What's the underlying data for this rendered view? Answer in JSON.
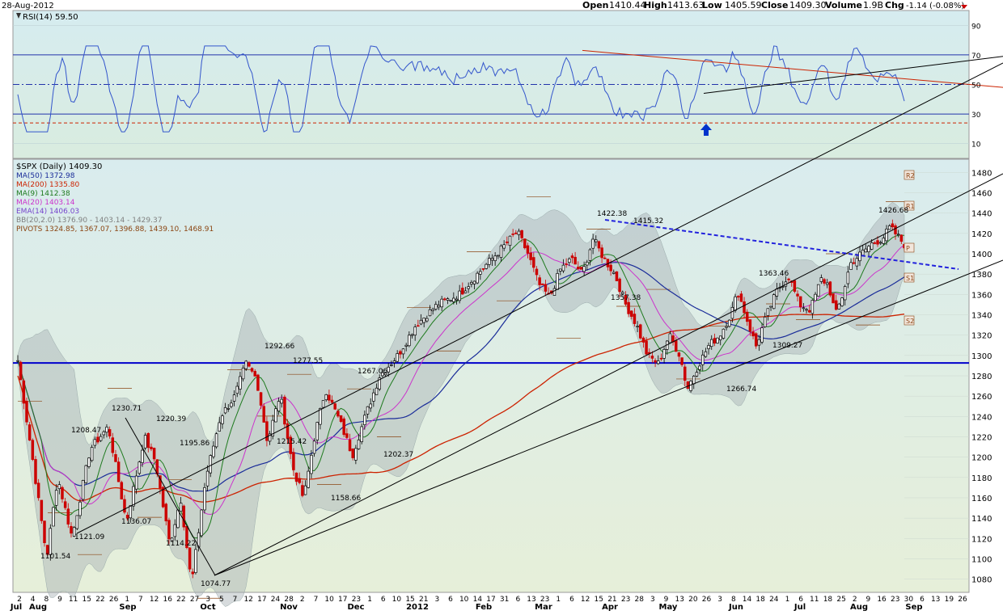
{
  "header": {
    "date": "28-Aug-2012",
    "open_label": "Open",
    "open": "1410.44",
    "high_label": "High",
    "high": "1413.63",
    "low_label": "Low",
    "low": "1405.59",
    "close_label": "Close",
    "close": "1409.30",
    "volume_label": "Volume",
    "volume": "1.9B",
    "chg_label": "Chg",
    "chg": "-1.14 (-0.08%)"
  },
  "colors": {
    "bg_top": "#d9ecef",
    "bg_bottom": "#e4eedb",
    "up": "#000000",
    "down": "#cc0000",
    "rsi": "#3355cc",
    "ma50": "#1a2c99",
    "ma200": "#cc2200",
    "ma9": "#1e7a1e",
    "ma20": "#cc33cc",
    "ema14": "#7744cc",
    "bb": "#a9a9a9",
    "pivot": "#8b4513",
    "support": "#0000cc"
  },
  "rsi_panel": {
    "label": "RSI(14) 59.50",
    "ticks": [
      "90",
      "70",
      "50",
      "30",
      "10"
    ]
  },
  "legend": [
    {
      "text": "$SPX (Daily) 1409.30",
      "color": "#000000"
    },
    {
      "text": "MA(50) 1372.98",
      "color": "#1a2c99"
    },
    {
      "text": "MA(200) 1335.80",
      "color": "#cc2200"
    },
    {
      "text": "MA(9) 1412.38",
      "color": "#1e7a1e"
    },
    {
      "text": "MA(20) 1403.14",
      "color": "#cc33cc"
    },
    {
      "text": "EMA(14) 1406.03",
      "color": "#7744cc"
    },
    {
      "text": "BB(20,2.0) 1376.90 - 1403.14 - 1429.37",
      "color": "#808080"
    },
    {
      "text": "PIVOTS 1324.85, 1367.07, 1396.88, 1439.10, 1468.91",
      "color": "#8b4513"
    }
  ],
  "pivot_labels": [
    "R2",
    "R1",
    "P",
    "S1",
    "S2"
  ],
  "chart_data": {
    "type": "candlestick",
    "price_ticks": [
      1480,
      1460,
      1440,
      1420,
      1400,
      1380,
      1360,
      1340,
      1320,
      1300,
      1280,
      1260,
      1240,
      1220,
      1200,
      1180,
      1160,
      1140,
      1120,
      1100,
      1080
    ],
    "price_ylim": [
      1067,
      1493
    ],
    "rsi_ylim": [
      0,
      100
    ],
    "day_ticks": [
      "2",
      "4",
      "8",
      "9",
      "11",
      "15",
      "22",
      "26",
      "1",
      "7",
      "12",
      "16",
      "22",
      "27",
      "3",
      "5",
      "7",
      "12",
      "17",
      "24",
      "28",
      "2",
      "7",
      "10",
      "17",
      "23",
      "1",
      "6",
      "10",
      "15",
      "21",
      "3",
      "6",
      "10",
      "14",
      "17",
      "31",
      "6",
      "13",
      "23",
      "1",
      "6",
      "12",
      "15",
      "21",
      "23",
      "28",
      "3",
      "9",
      "13",
      "20",
      "26",
      "3",
      "8",
      "14",
      "18",
      "24",
      "1",
      "6",
      "11",
      "18",
      "25",
      "2",
      "9",
      "16",
      "23",
      "30",
      "6",
      "13",
      "19",
      "26"
    ],
    "month_labels": [
      "Jul",
      "Aug",
      "Sep",
      "Oct",
      "Nov",
      "Dec",
      "2012",
      "Feb",
      "Mar",
      "Apr",
      "May",
      "Jun",
      "Jul",
      "Aug",
      "Sep"
    ],
    "annotations": [
      {
        "label": "1101.54",
        "value": 1101.54
      },
      {
        "label": "1121.09",
        "value": 1121.09
      },
      {
        "label": "1208.47",
        "value": 1208.47
      },
      {
        "label": "1230.71",
        "value": 1230.71
      },
      {
        "label": "1136.07",
        "value": 1136.07
      },
      {
        "label": "1220.39",
        "value": 1220.39
      },
      {
        "label": "1114.22",
        "value": 1114.22
      },
      {
        "label": "1195.86",
        "value": 1195.86
      },
      {
        "label": "1074.77",
        "value": 1074.77
      },
      {
        "label": "1292.66",
        "value": 1292.66
      },
      {
        "label": "1277.55",
        "value": 1277.55
      },
      {
        "label": "1215.42",
        "value": 1215.42
      },
      {
        "label": "1158.66",
        "value": 1158.66
      },
      {
        "label": "1267.06",
        "value": 1267.06
      },
      {
        "label": "1202.37",
        "value": 1202.37
      },
      {
        "label": "1422.38",
        "value": 1422.38
      },
      {
        "label": "1415.32",
        "value": 1415.32
      },
      {
        "label": "1357.38",
        "value": 1357.38
      },
      {
        "label": "1363.46",
        "value": 1363.46
      },
      {
        "label": "1309.27",
        "value": 1309.27
      },
      {
        "label": "1266.74",
        "value": 1266.74
      },
      {
        "label": "1426.68",
        "value": 1426.68
      }
    ],
    "horizontal_support": 1292.66,
    "last_close": 1409.3
  }
}
